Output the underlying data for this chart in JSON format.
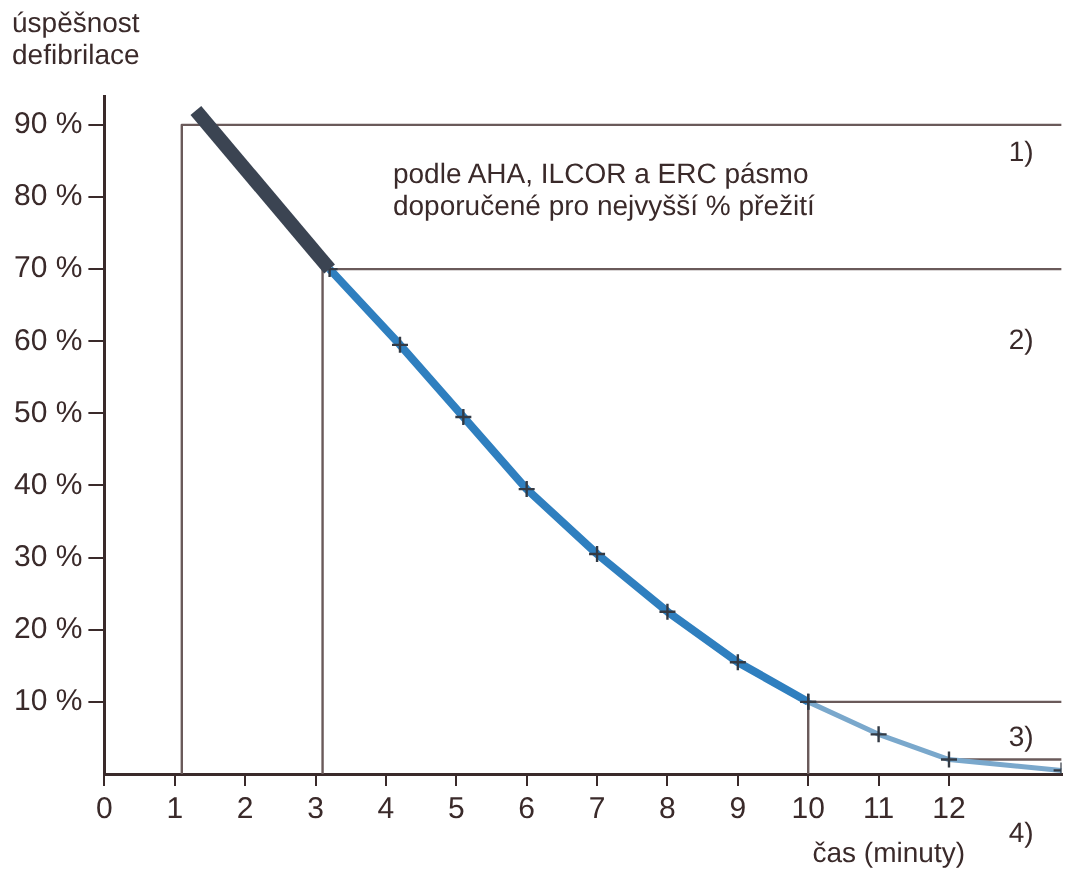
{
  "chart_data": {
    "type": "line",
    "xlabel": "čas (minuty)",
    "ylabel": "úspěšnost defibrilace",
    "xlim": [
      0,
      13.6
    ],
    "xticks": [
      0,
      1,
      2,
      3,
      4,
      5,
      6,
      7,
      8,
      9,
      10,
      11,
      12
    ],
    "ylim": [
      0,
      94
    ],
    "yticks": [
      {
        "value": 10,
        "label": "10 %"
      },
      {
        "value": 20,
        "label": "20 %"
      },
      {
        "value": 30,
        "label": "30 %"
      },
      {
        "value": 40,
        "label": "40 %"
      },
      {
        "value": 50,
        "label": "50 %"
      },
      {
        "value": 60,
        "label": "60 %"
      },
      {
        "value": 70,
        "label": "70 %"
      },
      {
        "value": 80,
        "label": "80 %"
      },
      {
        "value": 90,
        "label": "90 %"
      }
    ],
    "series": [
      {
        "color": "#3b4452",
        "x": [
          1.3,
          3.2
        ],
        "values": [
          92,
          70
        ]
      },
      {
        "color": "#2f7fbf",
        "marker": "cross",
        "x": [
          3.2,
          4.2,
          5.1,
          6,
          7,
          8,
          9,
          10
        ],
        "values": [
          70,
          59.5,
          49.5,
          39.5,
          30.5,
          22.5,
          15.5,
          10
        ]
      },
      {
        "color": "#7aa8cc",
        "marker": "cross",
        "x": [
          10,
          11,
          12,
          13.6
        ],
        "values": [
          10,
          5.5,
          2,
          0.5
        ]
      },
      {
        "color": "#6a5a5a",
        "marker": "none",
        "x": [
          1.1,
          1.1,
          13.6
        ],
        "values": [
          0,
          90,
          90
        ]
      },
      {
        "color": "#6a5a5a",
        "marker": "none",
        "x": [
          3.1,
          3.1,
          13.6
        ],
        "values": [
          0,
          70,
          70
        ]
      },
      {
        "color": "#6a5a5a",
        "marker": "none",
        "x": [
          10,
          10,
          13.6
        ],
        "values": [
          0,
          10,
          10
        ]
      },
      {
        "color": "#6a5a5a",
        "marker": "none",
        "x": [
          12,
          13.6
        ],
        "values": [
          2,
          2
        ]
      }
    ],
    "annotations": [
      "podle AHA, ILCOR a ERC pásmo\ndoporučené pro nejvyšší % přežití",
      "1)",
      "2)",
      "3)",
      "4)"
    ]
  }
}
